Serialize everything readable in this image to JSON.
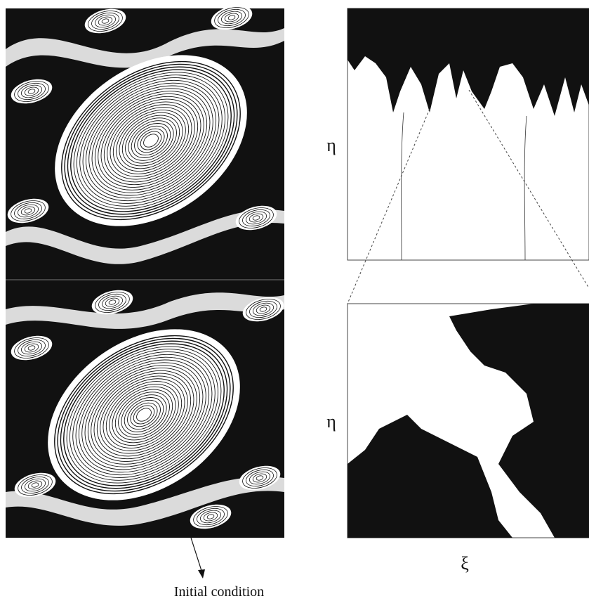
{
  "panels": {
    "left": {
      "annotation": "Initial condition"
    },
    "right_top": {
      "y_label": "η"
    },
    "right_bottom": {
      "y_label": "η",
      "x_label": "ξ"
    }
  }
}
